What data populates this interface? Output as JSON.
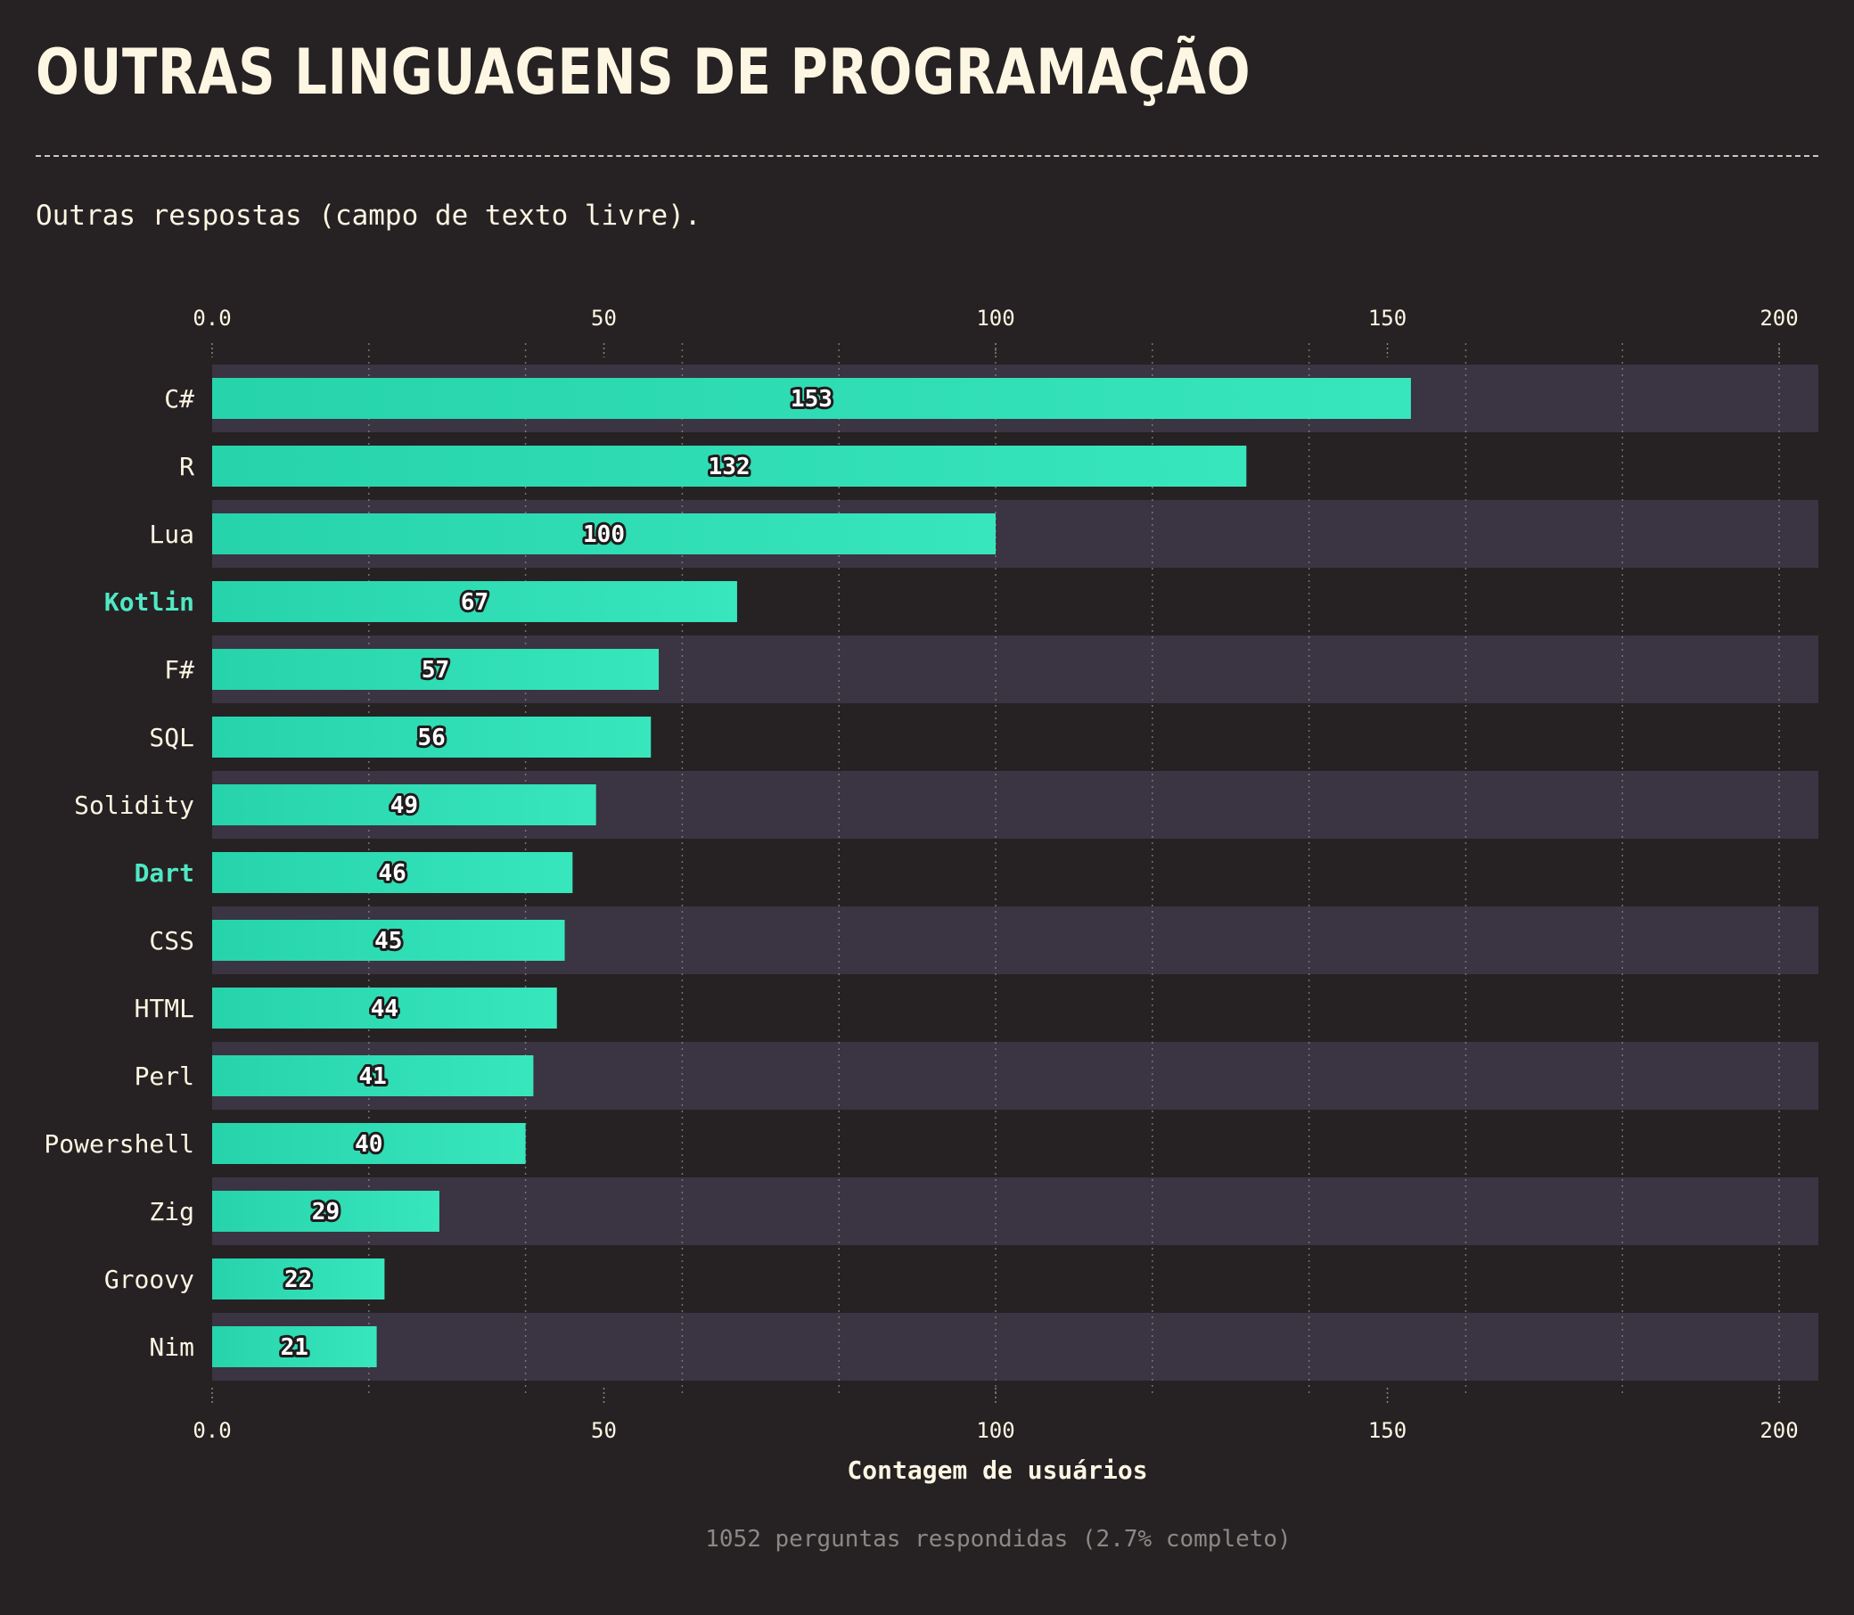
{
  "page": {
    "title": "OUTRAS LINGUAGENS DE PROGRAMAÇÃO",
    "subtitle": "Outras respostas (campo de texto livre).",
    "footer": "1052 perguntas respondidas (2.7% completo)"
  },
  "colors": {
    "background": "#262223",
    "band": "#3a3443",
    "bar_start": "#26d3ab",
    "bar_end": "#38e6bd",
    "text": "#fdf6e3",
    "highlight": "#4fe8c4",
    "grid": "#8a8580"
  },
  "chart_data": {
    "type": "bar",
    "orientation": "horizontal",
    "categories": [
      "C#",
      "R",
      "Lua",
      "Kotlin",
      "F#",
      "SQL",
      "Solidity",
      "Dart",
      "CSS",
      "HTML",
      "Perl",
      "Powershell",
      "Zig",
      "Groovy",
      "Nim"
    ],
    "values": [
      153,
      132,
      100,
      67,
      57,
      56,
      49,
      46,
      45,
      44,
      41,
      40,
      29,
      22,
      21
    ],
    "highlighted": [
      "Kotlin",
      "Dart"
    ],
    "xlabel": "Contagem de usuários",
    "ylabel": "",
    "xlim": [
      0,
      205
    ],
    "xticks": [
      0,
      50,
      100,
      150,
      200
    ],
    "xtick_labels": [
      "0.0",
      "50",
      "100",
      "150",
      "200"
    ],
    "minor_grid_step": 20,
    "grid": true,
    "x_axis_position": "top and bottom"
  }
}
